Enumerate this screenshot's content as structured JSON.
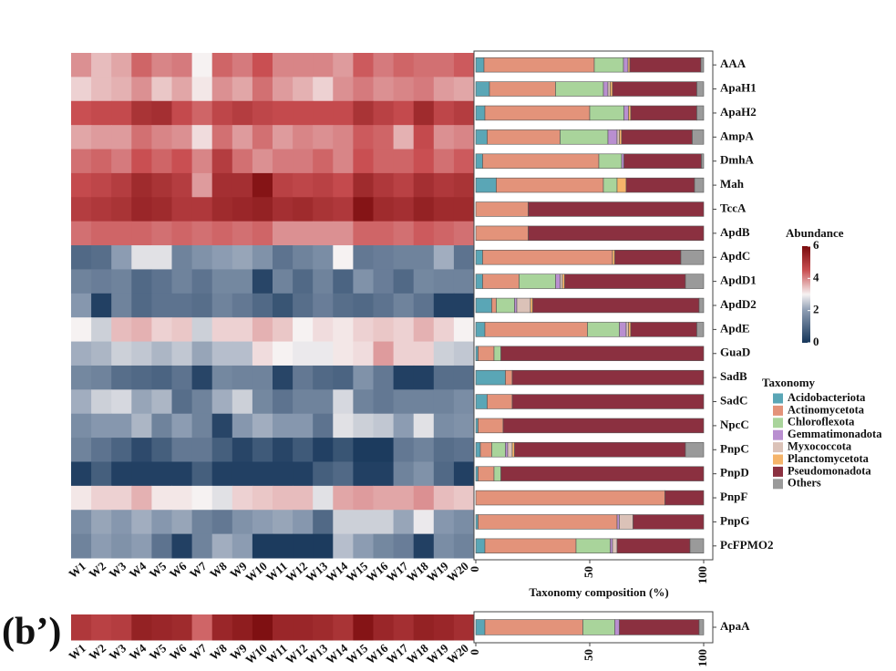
{
  "panel_label": "(b’)",
  "chart_data": [
    {
      "type": "heatmap",
      "x": [
        "W1",
        "W2",
        "W3",
        "W4",
        "W5",
        "W6",
        "W7",
        "W8",
        "W9",
        "W10",
        "W11",
        "W12",
        "W13",
        "W14",
        "W15",
        "W16",
        "W17",
        "W18",
        "W19",
        "W20"
      ],
      "categories": [
        "AAA",
        "ApaH1",
        "ApaH2",
        "AmpA",
        "DmhA",
        "Mah",
        "TccA",
        "ApdB",
        "ApdC",
        "ApdD1",
        "ApdD2",
        "ApdE",
        "GuaD",
        "SadB",
        "SadC",
        "NpcC",
        "PnpC",
        "PnpD",
        "PnpF",
        "PnpG",
        "PcFPMO2"
      ],
      "values": [
        [
          3.9,
          3.5,
          3.7,
          4.3,
          4.0,
          4.1,
          3.0,
          4.3,
          4.1,
          4.5,
          4.0,
          4.0,
          4.0,
          3.8,
          4.4,
          4.1,
          4.3,
          4.2,
          4.2,
          4.4
        ],
        [
          3.3,
          3.5,
          3.6,
          3.9,
          3.4,
          3.7,
          3.1,
          3.9,
          3.7,
          4.2,
          3.8,
          3.6,
          3.3,
          3.9,
          4.1,
          3.9,
          4.0,
          4.1,
          3.8,
          3.7
        ],
        [
          4.5,
          4.6,
          4.6,
          5.1,
          5.2,
          4.6,
          4.3,
          4.7,
          4.9,
          4.7,
          4.6,
          4.6,
          4.6,
          4.6,
          5.1,
          4.8,
          4.6,
          5.3,
          4.7,
          4.9
        ],
        [
          3.7,
          3.8,
          3.8,
          4.2,
          4.0,
          3.9,
          3.2,
          4.2,
          3.8,
          4.2,
          3.8,
          4.0,
          3.9,
          4.0,
          4.4,
          4.3,
          3.6,
          4.6,
          3.9,
          4.0
        ],
        [
          4.2,
          4.3,
          4.1,
          4.5,
          4.3,
          4.5,
          4.0,
          4.9,
          4.2,
          3.9,
          4.1,
          4.1,
          4.3,
          4.0,
          4.5,
          4.3,
          4.3,
          4.5,
          4.2,
          4.4
        ],
        [
          4.6,
          4.7,
          4.9,
          5.3,
          5.1,
          4.9,
          3.8,
          5.2,
          5.2,
          5.8,
          4.8,
          4.7,
          4.8,
          4.6,
          5.3,
          5.0,
          4.8,
          5.2,
          5.0,
          5.1
        ],
        [
          4.9,
          5.0,
          5.1,
          5.4,
          5.3,
          5.0,
          5.0,
          5.3,
          5.4,
          5.5,
          5.2,
          5.3,
          5.1,
          5.0,
          5.8,
          5.3,
          5.2,
          5.5,
          5.3,
          5.3
        ],
        [
          4.2,
          4.3,
          4.3,
          4.3,
          4.2,
          4.3,
          4.2,
          4.3,
          4.2,
          4.3,
          3.9,
          3.9,
          3.9,
          3.9,
          4.3,
          4.3,
          4.2,
          4.4,
          4.3,
          4.2
        ],
        [
          1.0,
          1.1,
          2.0,
          2.8,
          2.8,
          1.5,
          1.8,
          2.0,
          2.1,
          1.8,
          1.2,
          1.5,
          1.7,
          3.0,
          1.3,
          1.4,
          1.5,
          1.5,
          2.2,
          1.2
        ],
        [
          1.5,
          1.4,
          1.5,
          1.0,
          1.2,
          1.5,
          1.2,
          1.6,
          1.6,
          0.3,
          1.5,
          1.0,
          1.5,
          0.9,
          1.8,
          1.4,
          1.0,
          1.6,
          1.5,
          1.5
        ],
        [
          1.9,
          0.2,
          1.5,
          1.0,
          1.2,
          1.2,
          1.1,
          1.5,
          1.3,
          1.0,
          0.6,
          1.1,
          1.4,
          1.1,
          1.0,
          1.2,
          1.5,
          1.2,
          0.2,
          0.2
        ],
        [
          3.0,
          2.6,
          3.5,
          3.6,
          3.3,
          3.4,
          2.6,
          3.3,
          3.3,
          3.6,
          3.4,
          3.0,
          3.2,
          3.1,
          3.3,
          3.4,
          3.3,
          3.6,
          3.3,
          3.0
        ],
        [
          2.2,
          2.3,
          2.6,
          2.5,
          2.3,
          2.5,
          2.1,
          2.4,
          2.4,
          3.2,
          3.0,
          2.9,
          2.9,
          3.1,
          3.2,
          3.8,
          3.3,
          3.3,
          2.6,
          2.5
        ],
        [
          1.6,
          1.5,
          1.1,
          1.0,
          0.9,
          1.2,
          0.3,
          1.6,
          1.5,
          1.5,
          0.3,
          1.3,
          1.0,
          0.9,
          1.8,
          1.3,
          0.2,
          0.2,
          1.1,
          1.1
        ],
        [
          2.2,
          2.6,
          2.7,
          2.1,
          2.3,
          1.1,
          1.5,
          2.2,
          2.6,
          1.6,
          1.2,
          1.5,
          1.5,
          2.7,
          1.5,
          1.3,
          1.5,
          1.5,
          1.5,
          1.7
        ],
        [
          1.7,
          1.9,
          1.9,
          2.3,
          1.5,
          2.0,
          1.5,
          0.3,
          1.9,
          2.2,
          1.9,
          1.9,
          1.2,
          2.8,
          2.6,
          2.5,
          2.0,
          2.8,
          1.7,
          1.8
        ],
        [
          1.5,
          1.2,
          0.9,
          0.4,
          0.8,
          1.3,
          1.3,
          0.8,
          0.3,
          0.7,
          0.3,
          0.7,
          0.2,
          0.6,
          0.1,
          0.1,
          1.3,
          1.5,
          1.1,
          1.2
        ],
        [
          0.2,
          0.8,
          0.2,
          0.2,
          0.2,
          0.2,
          0.8,
          0.2,
          0.2,
          0.2,
          0.2,
          0.2,
          0.8,
          1.0,
          0.2,
          0.2,
          1.5,
          1.8,
          1.0,
          0.2
        ],
        [
          3.1,
          3.3,
          3.3,
          3.6,
          3.1,
          3.1,
          3.0,
          2.8,
          3.3,
          3.4,
          3.5,
          3.5,
          2.8,
          3.7,
          3.8,
          3.7,
          3.7,
          3.9,
          3.5,
          3.4
        ],
        [
          1.7,
          2.1,
          1.9,
          2.2,
          1.9,
          2.1,
          1.5,
          1.3,
          1.8,
          2.0,
          2.1,
          1.9,
          1.0,
          2.6,
          2.6,
          2.6,
          2.1,
          2.9,
          1.9,
          1.7
        ],
        [
          1.5,
          2.0,
          1.8,
          2.0,
          1.2,
          0.2,
          1.5,
          2.2,
          2.0,
          0.1,
          0.1,
          0.1,
          0.1,
          2.4,
          2.0,
          1.6,
          1.4,
          0.2,
          1.7,
          1.5
        ]
      ],
      "legend_title": "Abundance",
      "zlim": [
        0,
        6
      ],
      "zticks": [
        0,
        2,
        4,
        6
      ],
      "colorscale": [
        [
          0,
          "#16365a"
        ],
        [
          2,
          "#8c9cb2"
        ],
        [
          3,
          "#f6f2f2"
        ],
        [
          4.5,
          "#c94f52"
        ],
        [
          6,
          "#7a0b0d"
        ]
      ]
    },
    {
      "type": "stacked_barh",
      "categories": [
        "AAA",
        "ApaH1",
        "ApaH2",
        "AmpA",
        "DmhA",
        "Mah",
        "TccA",
        "ApdB",
        "ApdC",
        "ApdD1",
        "ApdD2",
        "ApdE",
        "GuaD",
        "SadB",
        "SadC",
        "NpcC",
        "PnpC",
        "PnpD",
        "PnpF",
        "PnpG",
        "PcFPMO2"
      ],
      "xlabel": "Taxonomy composition (%)",
      "xlim": [
        0,
        100
      ],
      "xticks": [
        0,
        50,
        100
      ],
      "legend_title": "Taxonomy",
      "series": [
        {
          "name": "Acidobacteriota",
          "color": "#5aa6b6",
          "values": [
            3.6,
            6,
            4,
            5,
            3,
            9,
            0,
            0,
            3,
            3,
            7,
            4,
            1,
            13,
            5,
            1,
            2,
            1,
            0,
            1,
            4
          ]
        },
        {
          "name": "Actinomycetota",
          "color": "#e3937a",
          "values": [
            48.4,
            29,
            46,
            32,
            51,
            47,
            23,
            23,
            57,
            16,
            2,
            45,
            7,
            3,
            11,
            11,
            5,
            7,
            83,
            61,
            40
          ]
        },
        {
          "name": "Chloroflexota",
          "color": "#a9d49b",
          "values": [
            12.8,
            21,
            15,
            21,
            10,
            6,
            0,
            0,
            0,
            16,
            8,
            14,
            3,
            0,
            0,
            0,
            6,
            3,
            0,
            0,
            15
          ]
        },
        {
          "name": "Gemmatimonadota",
          "color": "#b98fd0",
          "values": [
            2,
            2,
            2,
            4,
            1,
            0,
            0,
            0,
            0,
            2,
            1,
            3,
            0,
            0,
            0,
            0,
            1,
            0,
            0,
            1,
            1
          ]
        },
        {
          "name": "Myxococcota",
          "color": "#dbc2b8",
          "values": [
            0,
            1,
            0,
            1,
            0,
            0,
            0,
            0,
            0,
            1,
            6,
            1,
            0,
            0,
            0,
            0,
            2,
            0,
            0,
            6,
            2
          ]
        },
        {
          "name": "Planctomycetota",
          "color": "#f5b46a",
          "values": [
            0.8,
            1,
            1,
            1,
            0,
            4,
            0,
            0,
            1,
            1,
            1,
            1,
            0,
            0,
            0,
            0,
            1,
            0,
            0,
            0,
            0
          ]
        },
        {
          "name": "Pseudomonadota",
          "color": "#8b3040",
          "values": [
            31.2,
            37,
            29,
            31,
            34,
            30,
            77,
            77,
            29,
            53,
            73,
            29,
            89,
            84,
            84,
            88,
            75,
            89,
            17,
            31,
            32
          ]
        },
        {
          "name": "Others",
          "color": "#9a9a9a",
          "values": [
            1.2,
            3,
            3,
            5,
            1,
            4,
            0,
            0,
            10,
            8,
            2,
            3,
            0,
            0,
            0,
            0,
            8,
            0,
            0,
            0,
            6
          ]
        }
      ]
    },
    {
      "type": "heatmap",
      "x": [
        "W1",
        "W2",
        "W3",
        "W4",
        "W5",
        "W6",
        "W7",
        "W8",
        "W9",
        "W10",
        "W11",
        "W12",
        "W13",
        "W14",
        "W15",
        "W16",
        "W17",
        "W18",
        "W19",
        "W20"
      ],
      "categories": [
        "ApaA"
      ],
      "values": [
        [
          5.0,
          4.8,
          4.9,
          5.5,
          5.4,
          5.3,
          4.3,
          5.4,
          5.6,
          5.9,
          5.4,
          5.4,
          5.3,
          5.1,
          5.8,
          5.4,
          5.2,
          5.5,
          5.4,
          5.2
        ]
      ]
    },
    {
      "type": "stacked_barh",
      "categories": [
        "ApaA"
      ],
      "xlabel": "Taxonomy composition (%)",
      "xlim": [
        0,
        100
      ],
      "xticks": [
        0,
        50,
        100
      ],
      "series": [
        {
          "name": "Acidobacteriota",
          "color": "#5aa6b6",
          "values": [
            4
          ]
        },
        {
          "name": "Actinomycetota",
          "color": "#e3937a",
          "values": [
            43
          ]
        },
        {
          "name": "Chloroflexota",
          "color": "#a9d49b",
          "values": [
            14
          ]
        },
        {
          "name": "Gemmatimonadota",
          "color": "#b98fd0",
          "values": [
            2
          ]
        },
        {
          "name": "Myxococcota",
          "color": "#dbc2b8",
          "values": [
            0
          ]
        },
        {
          "name": "Planctomycetota",
          "color": "#f5b46a",
          "values": [
            0
          ]
        },
        {
          "name": "Pseudomonadota",
          "color": "#8b3040",
          "values": [
            35
          ]
        },
        {
          "name": "Others",
          "color": "#9a9a9a",
          "values": [
            2
          ]
        }
      ]
    }
  ]
}
